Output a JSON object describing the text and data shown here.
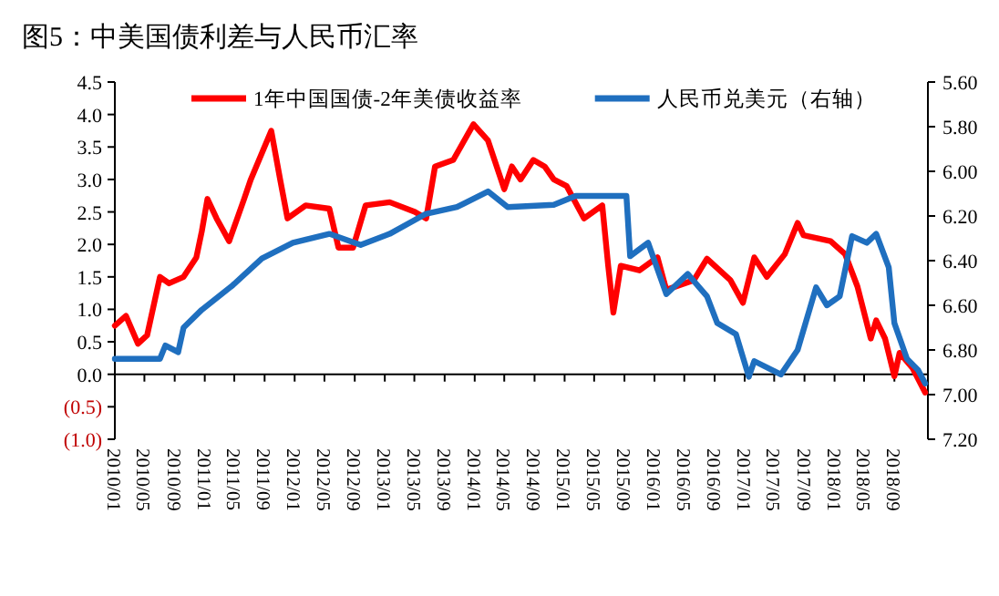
{
  "chart_data": {
    "type": "line",
    "title": "图5：中美国债利差与人民币汇率",
    "xlim": [
      "2010-01-01",
      "2019-01-15"
    ],
    "xticks": [
      {
        "value": "2010-01",
        "label": "2010/01"
      },
      {
        "value": "2010-05",
        "label": "2010/05"
      },
      {
        "value": "2010-09",
        "label": "2010/09"
      },
      {
        "value": "2011-01",
        "label": "2011/01"
      },
      {
        "value": "2011-05",
        "label": "2011/05"
      },
      {
        "value": "2011-09",
        "label": "2011/09"
      },
      {
        "value": "2012-01",
        "label": "2012/01"
      },
      {
        "value": "2012-05",
        "label": "2012/05"
      },
      {
        "value": "2012-09",
        "label": "2012/09"
      },
      {
        "value": "2013-01",
        "label": "2013/01"
      },
      {
        "value": "2013-05",
        "label": "2013/05"
      },
      {
        "value": "2013-09",
        "label": "2013/09"
      },
      {
        "value": "2014-01",
        "label": "2014/01"
      },
      {
        "value": "2014-05",
        "label": "2014/05"
      },
      {
        "value": "2014-09",
        "label": "2014/09"
      },
      {
        "value": "2015-01",
        "label": "2015/01"
      },
      {
        "value": "2015-05",
        "label": "2015/05"
      },
      {
        "value": "2015-09",
        "label": "2015/09"
      },
      {
        "value": "2016-01",
        "label": "2016/01"
      },
      {
        "value": "2016-05",
        "label": "2016/05"
      },
      {
        "value": "2016-09",
        "label": "2016/09"
      },
      {
        "value": "2017-01",
        "label": "2017/01"
      },
      {
        "value": "2017-05",
        "label": "2017/05"
      },
      {
        "value": "2017-09",
        "label": "2017/09"
      },
      {
        "value": "2018-01",
        "label": "2018/01"
      },
      {
        "value": "2018-05",
        "label": "2018/05"
      },
      {
        "value": "2018-09",
        "label": "2018/09"
      }
    ],
    "ylim": [
      -1.0,
      4.5
    ],
    "yticks": [
      {
        "value": -1,
        "label": "(1.0)"
      },
      {
        "value": -0.5,
        "label": "(0.5)"
      },
      {
        "value": 0,
        "label": "0.0"
      },
      0.5,
      {
        "value": 1,
        "label": "1.0"
      },
      1.5,
      {
        "value": 2,
        "label": "2.0"
      },
      2.5,
      {
        "value": 3,
        "label": "3.0"
      },
      3.5,
      {
        "value": 4,
        "label": "4.0"
      },
      4.5
    ],
    "y2lim": [
      7.2,
      5.6
    ],
    "y2ticks": [
      {
        "value": 5.6,
        "label": "5.60"
      },
      {
        "value": 5.8,
        "label": "5.80"
      },
      {
        "value": 6.0,
        "label": "6.00"
      },
      {
        "value": 6.2,
        "label": "6.20"
      },
      {
        "value": 6.4,
        "label": "6.40"
      },
      {
        "value": 6.6,
        "label": "6.60"
      },
      {
        "value": 6.8,
        "label": "6.80"
      },
      {
        "value": 7.0,
        "label": "7.00"
      },
      {
        "value": 7.2,
        "label": "7.20"
      }
    ],
    "legend": "top",
    "marker": "none",
    "line_style": "solid",
    "series": [
      {
        "name": "1年中国国债-2年美债收益率",
        "color": "#ff0000",
        "x": [
          "2010-01-01",
          "2010-02-15",
          "2010-04-05",
          "2010-05-12",
          "2010-07-03",
          "2010-08-09",
          "2010-10-07",
          "2010-11-28",
          "2010-12-20",
          "2011-01-12",
          "2011-02-18",
          "2011-04-10",
          "2011-06-10",
          "2011-07-07",
          "2011-09-28",
          "2011-11-03",
          "2011-12-03",
          "2012-02-15",
          "2012-05-21",
          "2012-06-27",
          "2012-08-25",
          "2012-10-15",
          "2013-01-21",
          "2013-05-03",
          "2013-06-18",
          "2013-07-15",
          "2013-07-24",
          "2013-10-06",
          "2013-12-27",
          "2014-02-24",
          "2014-05-01",
          "2014-06-01",
          "2014-07-06",
          "2014-08-27",
          "2014-10-12",
          "2014-11-18",
          "2015-01-09",
          "2015-03-21",
          "2015-06-03",
          "2015-06-27",
          "2015-07-18",
          "2015-08-17",
          "2015-11-01",
          "2016-01-13",
          "2016-02-18",
          "2016-06-09",
          "2016-08-01",
          "2016-11-04",
          "2016-12-25",
          "2017-02-09",
          "2017-04-01",
          "2017-06-13",
          "2017-08-04",
          "2017-08-28",
          "2017-12-16",
          "2018-02-13",
          "2018-04-04",
          "2018-05-28",
          "2018-06-19",
          "2018-07-25",
          "2018-09-01",
          "2018-09-22",
          "2018-11-13",
          "2019-01-04"
        ],
        "values": [
          0.75,
          0.9,
          0.47,
          0.6,
          1.5,
          1.4,
          1.5,
          1.8,
          2.2,
          2.7,
          2.4,
          2.05,
          2.7,
          3.0,
          3.75,
          3.0,
          2.4,
          2.6,
          2.55,
          1.95,
          1.95,
          2.6,
          2.65,
          2.5,
          2.4,
          3.0,
          3.2,
          3.3,
          3.85,
          3.6,
          2.85,
          3.2,
          3.0,
          3.3,
          3.2,
          3.0,
          2.9,
          2.4,
          2.6,
          1.67,
          0.95,
          1.67,
          1.6,
          1.8,
          1.3,
          1.45,
          1.78,
          1.45,
          1.1,
          1.8,
          1.5,
          1.85,
          2.33,
          2.14,
          2.05,
          1.85,
          1.35,
          0.55,
          0.83,
          0.55,
          -0.03,
          0.33,
          0.1,
          -0.28
        ]
      },
      {
        "name": "人民币兑美元（右轴）",
        "color": "#1f6fbf",
        "axis": "y2",
        "x": [
          "2010-01-01",
          "2010-07-03",
          "2010-07-25",
          "2010-09-15",
          "2010-10-07",
          "2010-12-20",
          "2011-04-25",
          "2011-08-21",
          "2011-12-25",
          "2012-05-21",
          "2012-09-25",
          "2013-01-21",
          "2013-06-18",
          "2013-10-21",
          "2014-02-24",
          "2014-05-15",
          "2014-11-18",
          "2015-02-15",
          "2015-09-09",
          "2015-09-24",
          "2015-12-06",
          "2016-02-18",
          "2016-05-15",
          "2016-08-01",
          "2016-09-12",
          "2016-11-27",
          "2017-01-18",
          "2017-02-09",
          "2017-05-28",
          "2017-08-04",
          "2017-10-18",
          "2017-12-01",
          "2018-01-22",
          "2018-03-13",
          "2018-05-12",
          "2018-06-19",
          "2018-08-09",
          "2018-09-01",
          "2018-10-22",
          "2018-12-06",
          "2019-01-04"
        ],
        "values": [
          6.84,
          6.84,
          6.78,
          6.81,
          6.7,
          6.62,
          6.51,
          6.39,
          6.32,
          6.28,
          6.33,
          6.28,
          6.19,
          6.16,
          6.09,
          6.16,
          6.15,
          6.11,
          6.11,
          6.38,
          6.32,
          6.55,
          6.46,
          6.56,
          6.68,
          6.73,
          6.92,
          6.85,
          6.91,
          6.8,
          6.52,
          6.6,
          6.56,
          6.29,
          6.32,
          6.28,
          6.43,
          6.68,
          6.84,
          6.89,
          6.95
        ]
      }
    ]
  }
}
